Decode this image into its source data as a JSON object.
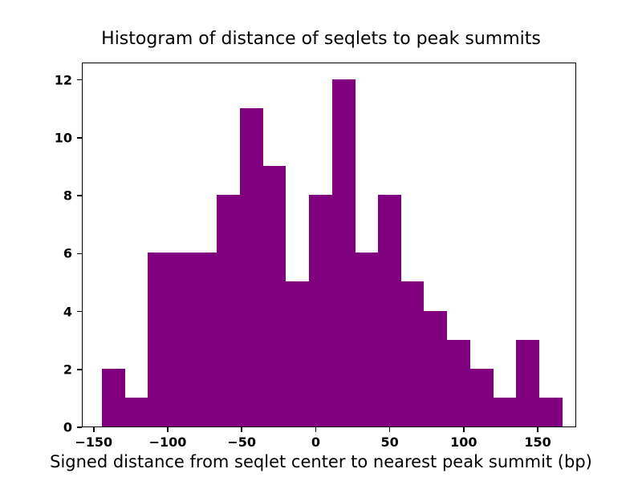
{
  "chart_data": {
    "type": "bar",
    "subtype": "histogram",
    "title": "Histogram of distance of seqlets to peak summits",
    "xlabel": "Signed distance from seqlet center to nearest peak summit (bp)",
    "ylabel": "",
    "bar_color": "#800080",
    "axis_color": "#000000",
    "background_color": "#ffffff",
    "grid": false,
    "legend": null,
    "bin_edges": [
      -145.0,
      -129.5,
      -113.9,
      -98.4,
      -82.8,
      -67.3,
      -51.7,
      -36.2,
      -20.6,
      -5.1,
      10.5,
      26.1,
      41.6,
      57.2,
      72.7,
      88.3,
      103.8,
      119.4,
      134.9,
      150.5,
      166.0
    ],
    "counts": [
      2,
      1,
      6,
      6,
      6,
      8,
      11,
      9,
      5,
      8,
      12,
      6,
      8,
      5,
      4,
      3,
      2,
      1,
      3,
      1
    ],
    "xlim": [
      -158,
      176
    ],
    "ylim": [
      0,
      12.6
    ],
    "xticks": [
      {
        "value": -150,
        "label": "−150"
      },
      {
        "value": -100,
        "label": "−100"
      },
      {
        "value": -50,
        "label": "−50"
      },
      {
        "value": 0,
        "label": "0"
      },
      {
        "value": 50,
        "label": "50"
      },
      {
        "value": 100,
        "label": "100"
      },
      {
        "value": 150,
        "label": "150"
      }
    ],
    "yticks": [
      {
        "value": 0,
        "label": "0"
      },
      {
        "value": 2,
        "label": "2"
      },
      {
        "value": 4,
        "label": "4"
      },
      {
        "value": 6,
        "label": "6"
      },
      {
        "value": 8,
        "label": "8"
      },
      {
        "value": 10,
        "label": "10"
      },
      {
        "value": 12,
        "label": "12"
      }
    ]
  }
}
